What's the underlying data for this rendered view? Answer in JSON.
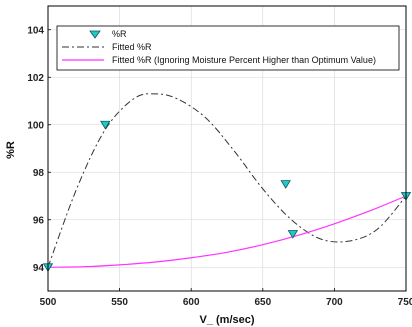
{
  "chart_data": {
    "type": "scatter",
    "xlabel": "V_ (m/sec)",
    "ylabel": "%R",
    "xlim": [
      500,
      750
    ],
    "ylim": [
      93,
      105
    ],
    "grid": true,
    "legend_position": "top-left",
    "x_ticks": [
      "500",
      "550",
      "600",
      "650",
      "700",
      "750"
    ],
    "y_ticks": [
      "94",
      "96",
      "98",
      "100",
      "102",
      "104"
    ],
    "series": [
      {
        "name": "%R",
        "kind": "markers",
        "marker": "triangle-down",
        "color": "#20c8c8",
        "x": [
          500,
          540,
          666,
          671,
          750
        ],
        "y": [
          94.0,
          100.0,
          97.5,
          95.4,
          97.0
        ]
      },
      {
        "name": "Fitted %R",
        "kind": "line",
        "style": "dash-dot",
        "color": "#333333",
        "x": [
          500,
          520,
          540,
          560,
          575,
          590,
          610,
          630,
          650,
          670,
          690,
          710,
          730,
          750
        ],
        "y": [
          94.0,
          97.3,
          99.8,
          101.1,
          101.3,
          101.1,
          100.3,
          98.9,
          97.3,
          96.0,
          95.2,
          95.1,
          95.6,
          97.0
        ]
      },
      {
        "name": "Fitted %R (Ignoring Moisture Percent Higher than Optimum Value)",
        "kind": "line",
        "style": "solid",
        "color": "#ff33ff",
        "x": [
          500,
          525,
          550,
          575,
          600,
          625,
          650,
          675,
          700,
          725,
          750
        ],
        "y": [
          94.0,
          94.02,
          94.1,
          94.22,
          94.4,
          94.63,
          94.95,
          95.35,
          95.83,
          96.38,
          97.0
        ]
      }
    ]
  }
}
